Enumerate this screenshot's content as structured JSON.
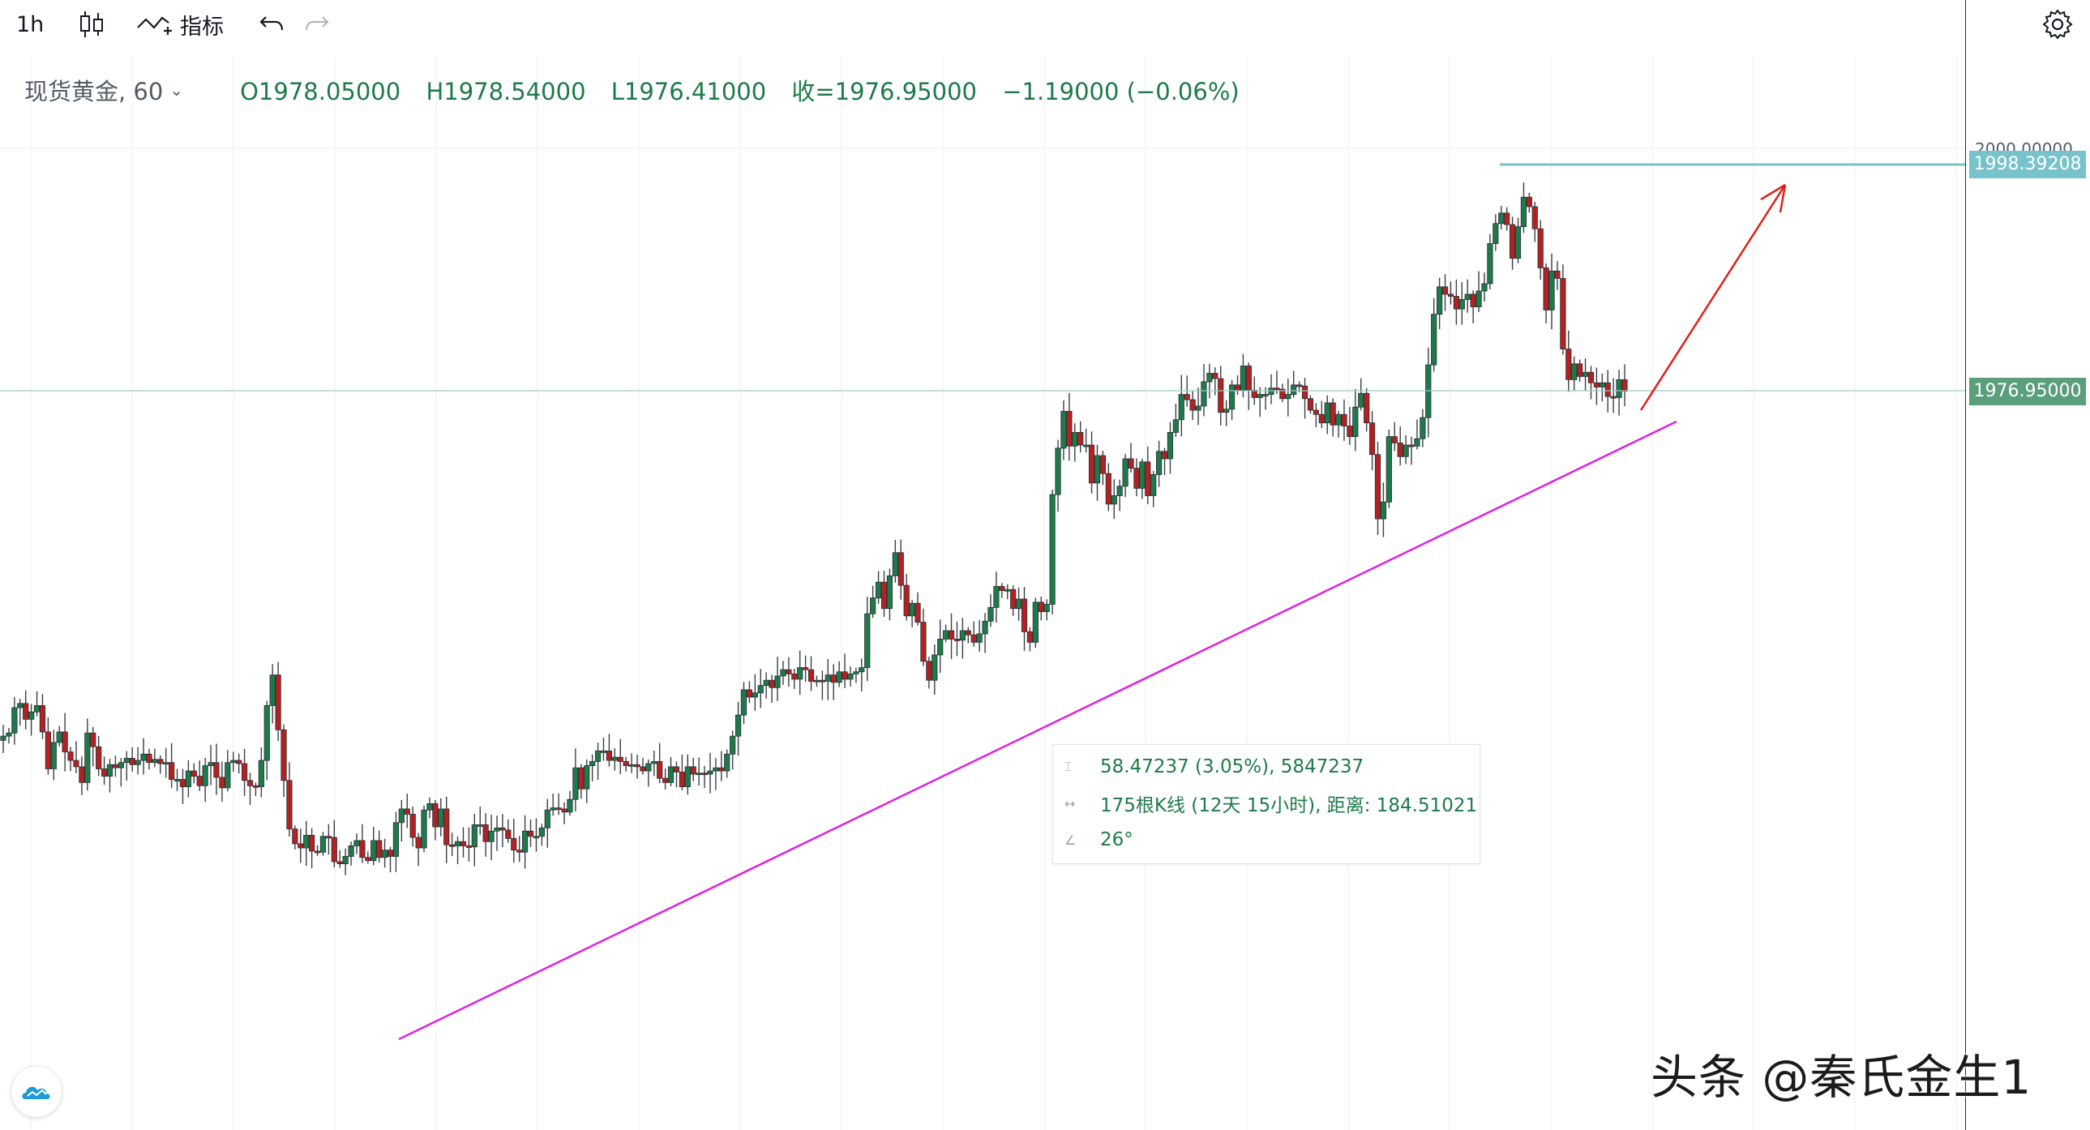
{
  "toolbar": {
    "interval_label": "1h",
    "indicators_label": "指标"
  },
  "legend": {
    "symbol": "现货黄金, 60",
    "open": "O1978.05000",
    "high": "H1978.54000",
    "low": "L1976.41000",
    "close": "收=1976.95000",
    "change": "−1.19000 (−0.06%)"
  },
  "measure": {
    "price_line": "58.47237 (3.05%), 5847237",
    "bars_line": "175根K线 (12天 15小时), 距离: 184.51021",
    "angle_line": "26°"
  },
  "price_axis": {
    "top_tick": "2000.00000",
    "resistance_label": "1998.39208",
    "last_price_label": "1976.95000"
  },
  "watermark": "头条 @秦氏金生1",
  "colors": {
    "up": "#26a69a",
    "candle_up": "#1e7a4a",
    "candle_down": "#b22222",
    "trendline": "#e020e0",
    "resistance": "#78c2cc",
    "arrow": "#e0201c",
    "last_price": "#5a9e7c"
  },
  "chart_data": {
    "type": "candlestick",
    "title": "",
    "symbol": "现货黄金",
    "interval": "60",
    "y_axis_ticks": [
      2000.0
    ],
    "annotations": {
      "resistance_level": 1998.39208,
      "last_price": 1976.95,
      "measure_price_change": 58.47237,
      "measure_percent": 3.05,
      "measure_bars": 175,
      "measure_angle_deg": 26
    },
    "close_path": [
      1944.2,
      1944.5,
      1946.9,
      1947.3,
      1945.8,
      1946.5,
      1947.1,
      1944.6,
      1941.1,
      1943.6,
      1944.6,
      1942.7,
      1941.9,
      1941.3,
      1939.8,
      1944.5,
      1943.2,
      1941.1,
      1940.4,
      1941.5,
      1941.2,
      1941.7,
      1942.1,
      1941.5,
      1941.9,
      1942.5,
      1941.7,
      1942.0,
      1941.6,
      1941.7,
      1940.1,
      1940.1,
      1939.4,
      1940.9,
      1940.4,
      1939.5,
      1941.4,
      1941.7,
      1940.3,
      1939.3,
      1941.7,
      1941.9,
      1941.6,
      1940.0,
      1939.5,
      1939.4,
      1941.9,
      1947.1,
      1950.0,
      1944.8,
      1940.0,
      1935.4,
      1934.0,
      1933.6,
      1934.8,
      1933.3,
      1933.2,
      1934.7,
      1934.6,
      1932.3,
      1932.1,
      1932.8,
      1933.8,
      1934.3,
      1932.7,
      1932.4,
      1934.3,
      1932.7,
      1933.4,
      1932.8,
      1936.0,
      1937.3,
      1936.8,
      1934.6,
      1933.6,
      1937.2,
      1937.8,
      1935.6,
      1937.3,
      1933.9,
      1933.8,
      1934.2,
      1933.8,
      1933.7,
      1935.8,
      1935.8,
      1934.2,
      1935.2,
      1935.5,
      1935.3,
      1934.5,
      1933.4,
      1933.2,
      1935.2,
      1934.7,
      1934.7,
      1935.5,
      1937.2,
      1937.4,
      1937.3,
      1937.0,
      1938.2,
      1941.2,
      1939.2,
      1941.4,
      1941.8,
      1942.8,
      1942.8,
      1941.9,
      1942.2,
      1941.8,
      1941.4,
      1941.5,
      1941.3,
      1940.9,
      1941.6,
      1941.8,
      1940.2,
      1939.8,
      1941.3,
      1940.8,
      1939.4,
      1941.3,
      1940.6,
      1940.7,
      1940.6,
      1940.9,
      1941.2,
      1940.9,
      1942.5,
      1944.2,
      1946.2,
      1948.6,
      1947.9,
      1948.3,
      1949.0,
      1949.5,
      1948.8,
      1949.9,
      1950.5,
      1950.1,
      1949.6,
      1950.7,
      1950.5,
      1949.4,
      1949.5,
      1949.4,
      1950.0,
      1949.3,
      1950.3,
      1949.6,
      1950.1,
      1950.3,
      1950.7,
      1955.8,
      1957.3,
      1958.8,
      1956.3,
      1959.4,
      1961.6,
      1958.5,
      1955.6,
      1956.8,
      1955.0,
      1951.3,
      1949.5,
      1951.9,
      1953.4,
      1954.2,
      1953.4,
      1953.3,
      1954.2,
      1953.8,
      1953.1,
      1953.9,
      1955.1,
      1956.4,
      1958.4,
      1958.0,
      1958.1,
      1956.3,
      1957.2,
      1954.1,
      1953.1,
      1956.9,
      1956.0,
      1956.7,
      1967.1,
      1971.5,
      1975.0,
      1971.7,
      1973.0,
      1971.8,
      1971.8,
      1968.2,
      1970.8,
      1969.1,
      1966.2,
      1967.0,
      1967.9,
      1970.5,
      1969.6,
      1967.7,
      1970.2,
      1967.0,
      1969.0,
      1971.2,
      1970.5,
      1973.0,
      1974.2,
      1976.6,
      1976.1,
      1975.1,
      1975.5,
      1977.8,
      1978.6,
      1978.1,
      1974.9,
      1975.2,
      1977.5,
      1977.0,
      1979.3,
      1977.0,
      1976.3,
      1976.6,
      1976.6,
      1977.2,
      1977.1,
      1976.2,
      1976.6,
      1977.5,
      1977.4,
      1976.2,
      1975.1,
      1974.7,
      1973.9,
      1975.8,
      1973.7,
      1974.7,
      1973.6,
      1972.6,
      1975.4,
      1976.7,
      1973.9,
      1970.9,
      1964.8,
      1966.4,
      1972.6,
      1972.0,
      1970.7,
      1971.8,
      1971.7,
      1972.4,
      1974.4,
      1979.4,
      1984.2,
      1986.8,
      1986.1,
      1985.9,
      1984.7,
      1985.6,
      1986.1,
      1984.9,
      1986.4,
      1987.1,
      1990.9,
      1992.8,
      1993.8,
      1992.7,
      1989.5,
      1992.5,
      1995.3,
      1994.4,
      1992.3,
      1988.6,
      1984.6,
      1988.3,
      1987.6,
      1980.9,
      1978.0,
      1979.5,
      1978.3,
      1978.7,
      1977.7,
      1977.3,
      1977.7,
      1976.4,
      1976.3,
      1978.0,
      1976.9
    ]
  }
}
